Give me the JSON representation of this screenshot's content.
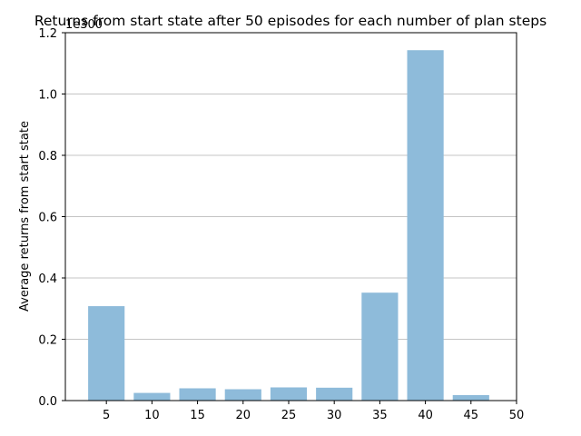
{
  "chart_data": {
    "type": "bar",
    "title": "Returns from start state after 50 episodes for each number of plan steps",
    "xlabel": "",
    "ylabel": "Average returns from start state",
    "y_scale_label": "1e300",
    "x": [
      5,
      10,
      15,
      20,
      25,
      30,
      35,
      40,
      45
    ],
    "values": [
      0.308,
      0.025,
      0.04,
      0.037,
      0.043,
      0.042,
      0.352,
      1.143,
      0.018
    ],
    "xlim": [
      0.5,
      50
    ],
    "ylim": [
      0,
      1.2
    ],
    "x_ticks": [
      "5",
      "10",
      "15",
      "20",
      "25",
      "30",
      "35",
      "40",
      "45",
      "50"
    ],
    "y_ticks": [
      "0.0",
      "0.2",
      "0.4",
      "0.6",
      "0.8",
      "1.0",
      "1.2"
    ],
    "grid": "horizontal",
    "bar_color": "#8ebbda"
  }
}
